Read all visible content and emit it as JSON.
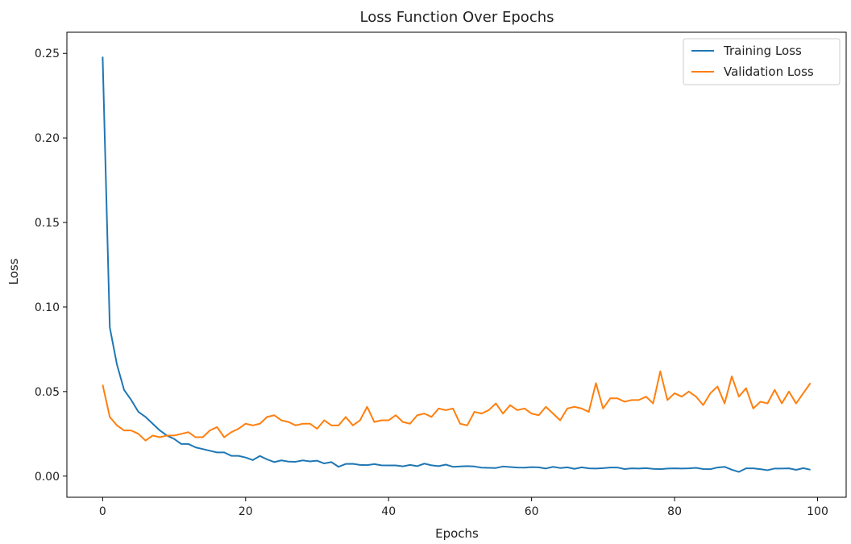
{
  "chart_data": {
    "type": "line",
    "title": "Loss Function Over Epochs",
    "xlabel": "Epochs",
    "ylabel": "Loss",
    "xlim": [
      -5.0,
      104.0
    ],
    "ylim": [
      -0.0125,
      0.2625
    ],
    "xticks": [
      0,
      20,
      40,
      60,
      80,
      100
    ],
    "yticks": [
      0.0,
      0.05,
      0.1,
      0.15,
      0.2,
      0.25
    ],
    "xtick_labels": [
      "0",
      "20",
      "40",
      "60",
      "80",
      "100"
    ],
    "ytick_labels": [
      "0.00",
      "0.05",
      "0.10",
      "0.15",
      "0.20",
      "0.25"
    ],
    "grid": false,
    "legend_position": "top-right",
    "series": [
      {
        "name": "Training Loss",
        "color": "#1f77b4",
        "x_start": 0,
        "values": [
          0.248,
          0.088,
          0.066,
          0.051,
          0.045,
          0.038,
          0.035,
          0.031,
          0.027,
          0.024,
          0.022,
          0.019,
          0.019,
          0.017,
          0.016,
          0.015,
          0.014,
          0.014,
          0.012,
          0.012,
          0.011,
          0.0095,
          0.0119,
          0.0099,
          0.0083,
          0.0093,
          0.0086,
          0.0085,
          0.0093,
          0.0087,
          0.0091,
          0.0075,
          0.0083,
          0.0055,
          0.0072,
          0.0073,
          0.0066,
          0.0065,
          0.0071,
          0.0064,
          0.0063,
          0.0063,
          0.0058,
          0.0066,
          0.0059,
          0.0074,
          0.0064,
          0.0059,
          0.0068,
          0.0055,
          0.0057,
          0.0059,
          0.0057,
          0.005,
          0.0049,
          0.0048,
          0.0057,
          0.0054,
          0.0051,
          0.005,
          0.0053,
          0.0052,
          0.0045,
          0.0055,
          0.0048,
          0.0052,
          0.0043,
          0.0052,
          0.0046,
          0.0045,
          0.0047,
          0.0051,
          0.0051,
          0.0042,
          0.0046,
          0.0045,
          0.0047,
          0.0043,
          0.0041,
          0.0045,
          0.0046,
          0.0045,
          0.0046,
          0.0049,
          0.0042,
          0.0041,
          0.0051,
          0.0055,
          0.0038,
          0.0025,
          0.0046,
          0.0046,
          0.0041,
          0.0035,
          0.0045,
          0.0045,
          0.0046,
          0.0037,
          0.0047,
          0.0038
        ]
      },
      {
        "name": "Validation Loss",
        "color": "#ff7f0e",
        "x_start": 0,
        "values": [
          0.054,
          0.035,
          0.03,
          0.027,
          0.027,
          0.025,
          0.021,
          0.024,
          0.023,
          0.024,
          0.024,
          0.025,
          0.026,
          0.023,
          0.023,
          0.027,
          0.029,
          0.023,
          0.026,
          0.028,
          0.031,
          0.03,
          0.031,
          0.035,
          0.036,
          0.033,
          0.032,
          0.03,
          0.031,
          0.031,
          0.028,
          0.033,
          0.03,
          0.03,
          0.035,
          0.03,
          0.033,
          0.041,
          0.032,
          0.033,
          0.033,
          0.036,
          0.032,
          0.031,
          0.036,
          0.037,
          0.035,
          0.04,
          0.039,
          0.04,
          0.031,
          0.03,
          0.038,
          0.037,
          0.039,
          0.043,
          0.037,
          0.042,
          0.039,
          0.04,
          0.037,
          0.036,
          0.041,
          0.037,
          0.033,
          0.04,
          0.041,
          0.04,
          0.038,
          0.055,
          0.04,
          0.046,
          0.046,
          0.044,
          0.045,
          0.045,
          0.047,
          0.043,
          0.062,
          0.045,
          0.049,
          0.047,
          0.05,
          0.047,
          0.042,
          0.049,
          0.053,
          0.043,
          0.059,
          0.047,
          0.052,
          0.04,
          0.044,
          0.043,
          0.051,
          0.043,
          0.05,
          0.043,
          0.049,
          0.055
        ]
      }
    ]
  }
}
